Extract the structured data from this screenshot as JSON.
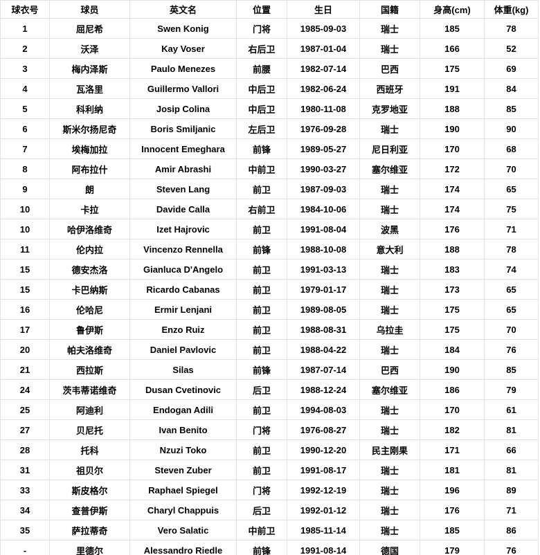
{
  "colors": {
    "background": "#ffffff",
    "border": "#e2e2e2",
    "text": "#000000"
  },
  "table": {
    "columns": [
      {
        "key": "jersey",
        "label": "球衣号"
      },
      {
        "key": "player",
        "label": "球员"
      },
      {
        "key": "name_en",
        "label": "英文名"
      },
      {
        "key": "position",
        "label": "位置"
      },
      {
        "key": "birthday",
        "label": "生日"
      },
      {
        "key": "nationality",
        "label": "国籍"
      },
      {
        "key": "height_cm",
        "label": "身高(cm)"
      },
      {
        "key": "weight_kg",
        "label": "体重(kg)"
      }
    ],
    "rows": [
      [
        "1",
        "屈尼希",
        "Swen Konig",
        "门将",
        "1985-09-03",
        "瑞士",
        "185",
        "78"
      ],
      [
        "2",
        "沃泽",
        "Kay Voser",
        "右后卫",
        "1987-01-04",
        "瑞士",
        "166",
        "52"
      ],
      [
        "3",
        "梅内泽斯",
        "Paulo Menezes",
        "前腰",
        "1982-07-14",
        "巴西",
        "175",
        "69"
      ],
      [
        "4",
        "瓦洛里",
        "Guillermo Vallori",
        "中后卫",
        "1982-06-24",
        "西班牙",
        "191",
        "84"
      ],
      [
        "5",
        "科利纳",
        "Josip Colina",
        "中后卫",
        "1980-11-08",
        "克罗地亚",
        "188",
        "85"
      ],
      [
        "6",
        "斯米尔扬尼奇",
        "Boris Smiljanic",
        "左后卫",
        "1976-09-28",
        "瑞士",
        "190",
        "90"
      ],
      [
        "7",
        "埃梅加拉",
        "Innocent Emeghara",
        "前锋",
        "1989-05-27",
        "尼日利亚",
        "170",
        "68"
      ],
      [
        "8",
        "阿布拉什",
        "Amir Abrashi",
        "中前卫",
        "1990-03-27",
        "塞尔维亚",
        "172",
        "70"
      ],
      [
        "9",
        "朗",
        "Steven Lang",
        "前卫",
        "1987-09-03",
        "瑞士",
        "174",
        "65"
      ],
      [
        "10",
        "卡拉",
        "Davide Calla",
        "右前卫",
        "1984-10-06",
        "瑞士",
        "174",
        "75"
      ],
      [
        "10",
        "哈伊洛维奇",
        "Izet Hajrovic",
        "前卫",
        "1991-08-04",
        "波黑",
        "176",
        "71"
      ],
      [
        "11",
        "伦内拉",
        "Vincenzo Rennella",
        "前锋",
        "1988-10-08",
        "意大利",
        "188",
        "78"
      ],
      [
        "15",
        "德安杰洛",
        "Gianluca D'Angelo",
        "前卫",
        "1991-03-13",
        "瑞士",
        "183",
        "74"
      ],
      [
        "15",
        "卡巴纳斯",
        "Ricardo Cabanas",
        "前卫",
        "1979-01-17",
        "瑞士",
        "173",
        "65"
      ],
      [
        "16",
        "伦哈尼",
        "Ermir Lenjani",
        "前卫",
        "1989-08-05",
        "瑞士",
        "175",
        "65"
      ],
      [
        "17",
        "鲁伊斯",
        "Enzo Ruiz",
        "前卫",
        "1988-08-31",
        "乌拉圭",
        "175",
        "70"
      ],
      [
        "20",
        "帕夫洛维奇",
        "Daniel Pavlovic",
        "前卫",
        "1988-04-22",
        "瑞士",
        "184",
        "76"
      ],
      [
        "21",
        "西拉斯",
        "Silas",
        "前锋",
        "1987-07-14",
        "巴西",
        "190",
        "85"
      ],
      [
        "24",
        "茨韦蒂诺维奇",
        "Dusan Cvetinovic",
        "后卫",
        "1988-12-24",
        "塞尔维亚",
        "186",
        "79"
      ],
      [
        "25",
        "阿迪利",
        "Endogan Adili",
        "前卫",
        "1994-08-03",
        "瑞士",
        "170",
        "61"
      ],
      [
        "27",
        "贝尼托",
        "Ivan Benito",
        "门将",
        "1976-08-27",
        "瑞士",
        "182",
        "81"
      ],
      [
        "28",
        "托科",
        "Nzuzi Toko",
        "前卫",
        "1990-12-20",
        "民主刚果",
        "171",
        "66"
      ],
      [
        "31",
        "祖贝尔",
        "Steven Zuber",
        "前卫",
        "1991-08-17",
        "瑞士",
        "181",
        "81"
      ],
      [
        "33",
        "斯皮格尔",
        "Raphael Spiegel",
        "门将",
        "1992-12-19",
        "瑞士",
        "196",
        "89"
      ],
      [
        "34",
        "查普伊斯",
        "Charyl Chappuis",
        "后卫",
        "1992-01-12",
        "瑞士",
        "176",
        "71"
      ],
      [
        "35",
        "萨拉蒂奇",
        "Vero Salatic",
        "中前卫",
        "1985-11-14",
        "瑞士",
        "185",
        "86"
      ],
      [
        "-",
        "里德尔",
        "Alessandro Riedle",
        "前锋",
        "1991-08-14",
        "德国",
        "179",
        "76"
      ]
    ]
  }
}
